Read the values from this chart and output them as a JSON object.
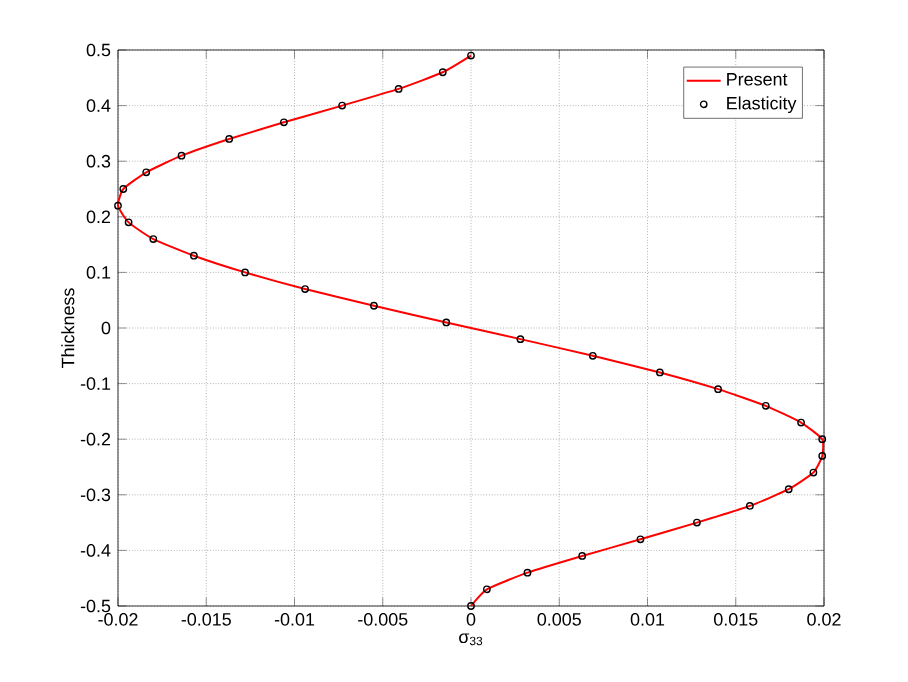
{
  "chart_data": {
    "type": "line",
    "xlabel": "σ$_{33}$",
    "ylabel": "Thickness",
    "xlim": [
      -0.02,
      0.02
    ],
    "ylim": [
      -0.5,
      0.5
    ],
    "xticks": [
      -0.02,
      -0.015,
      -0.01,
      -0.005,
      0,
      0.005,
      0.01,
      0.015,
      0.02
    ],
    "yticks": [
      -0.5,
      -0.4,
      -0.3,
      -0.2,
      -0.1,
      0,
      0.1,
      0.2,
      0.3,
      0.4,
      0.5
    ],
    "grid": true,
    "legend": "top right",
    "series": [
      {
        "name": "Present",
        "color": "#ff0000",
        "marker": "none",
        "line_style": "solid",
        "x": [
          0,
          -0.0016,
          -0.0041,
          -0.0073,
          -0.0106,
          -0.0137,
          -0.0164,
          -0.0184,
          -0.0197,
          -0.02,
          -0.0194,
          -0.018,
          -0.0157,
          -0.0128,
          -0.0094,
          -0.0055,
          -0.0014,
          0.0028,
          0.0069,
          0.0107,
          0.014,
          0.0167,
          0.0187,
          0.0199,
          0.0199,
          0.0194,
          0.018,
          0.0158,
          0.0128,
          0.0096,
          0.0063,
          0.0032,
          0.0009,
          0
        ],
        "values": [
          0.49,
          0.46,
          0.43,
          0.4,
          0.37,
          0.34,
          0.31,
          0.28,
          0.25,
          0.22,
          0.19,
          0.16,
          0.13,
          0.1,
          0.07,
          0.04,
          0.01,
          -0.02,
          -0.05,
          -0.08,
          -0.11,
          -0.14,
          -0.17,
          -0.2,
          -0.23,
          -0.26,
          -0.29,
          -0.32,
          -0.35,
          -0.38,
          -0.41,
          -0.44,
          -0.47,
          -0.5
        ]
      },
      {
        "name": "Elasticity",
        "type": "scatter",
        "color": "#000000",
        "marker": "circle",
        "x": [
          0,
          -0.0016,
          -0.0041,
          -0.0073,
          -0.0106,
          -0.0137,
          -0.0164,
          -0.0184,
          -0.0197,
          -0.02,
          -0.0194,
          -0.018,
          -0.0157,
          -0.0128,
          -0.0094,
          -0.0055,
          -0.0014,
          0.0028,
          0.0069,
          0.0107,
          0.014,
          0.0167,
          0.0187,
          0.0199,
          0.0199,
          0.0194,
          0.018,
          0.0158,
          0.0128,
          0.0096,
          0.0063,
          0.0032,
          0.0009,
          0
        ],
        "values": [
          0.49,
          0.46,
          0.43,
          0.4,
          0.37,
          0.34,
          0.31,
          0.28,
          0.25,
          0.22,
          0.19,
          0.16,
          0.13,
          0.1,
          0.07,
          0.04,
          0.01,
          -0.02,
          -0.05,
          -0.08,
          -0.11,
          -0.14,
          -0.17,
          -0.2,
          -0.23,
          -0.26,
          -0.29,
          -0.32,
          -0.35,
          -0.38,
          -0.41,
          -0.44,
          -0.47,
          -0.5
        ]
      }
    ]
  }
}
